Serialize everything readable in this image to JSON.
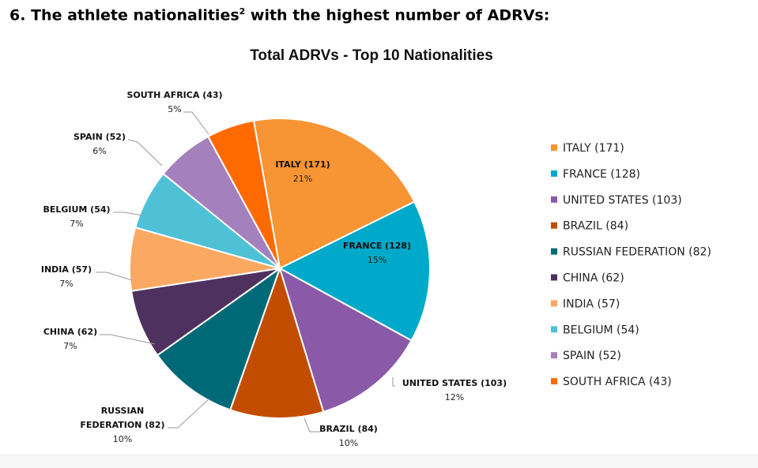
{
  "heading": {
    "number": "6.",
    "text": "The athlete nationalities",
    "superscript": "2",
    "suffix": " with the highest number of ADRVs:"
  },
  "chart_data": {
    "type": "pie",
    "title": "Total ADRVs - Top 10 Nationalities",
    "slices": [
      {
        "label": "ITALY (171)",
        "value": 171,
        "percent": "21%",
        "color": "#F79433"
      },
      {
        "label": "FRANCE (128)",
        "value": 128,
        "percent": "15%",
        "color": "#00A9C9"
      },
      {
        "label": "UNITED STATES (103)",
        "value": 103,
        "percent": "12%",
        "color": "#8A5AA9"
      },
      {
        "label": "BRAZIL (84)",
        "value": 84,
        "percent": "10%",
        "color": "#C24D00"
      },
      {
        "label": "RUSSIAN FEDERATION (82)",
        "value": 82,
        "percent": "10%",
        "color": "#006977"
      },
      {
        "label": "CHINA (62)",
        "value": 62,
        "percent": "7%",
        "color": "#4F3160"
      },
      {
        "label": "INDIA (57)",
        "value": 57,
        "percent": "7%",
        "color": "#FBA863"
      },
      {
        "label": "BELGIUM (54)",
        "value": 54,
        "percent": "7%",
        "color": "#4EC1D7"
      },
      {
        "label": "SPAIN (52)",
        "value": 52,
        "percent": "6%",
        "color": "#A481BD"
      },
      {
        "label": "SOUTH AFRICA (43)",
        "value": 43,
        "percent": "5%",
        "color": "#FF6A00"
      }
    ],
    "legend_position": "right"
  }
}
